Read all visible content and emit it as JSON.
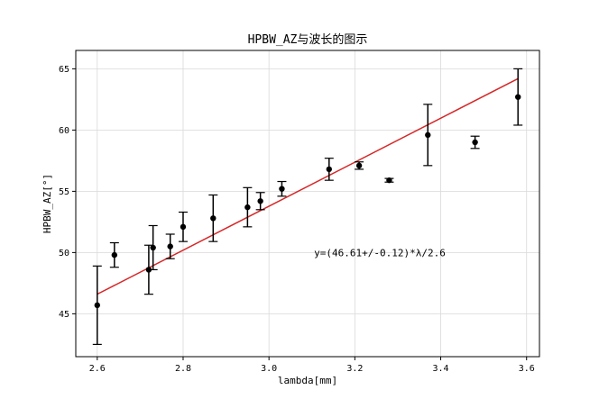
{
  "chart_data": {
    "type": "scatter",
    "title": "HPBW_AZ与波长的图示",
    "xlabel": "lambda[mm]",
    "ylabel": "HPBW_AZ[°]",
    "xlim": [
      2.55,
      3.63
    ],
    "ylim": [
      41.5,
      66.5
    ],
    "xticks": [
      2.6,
      2.8,
      3.0,
      3.2,
      3.4,
      3.6
    ],
    "xtick_labels": [
      "2.6",
      "2.8",
      "3.0",
      "3.2",
      "3.4",
      "3.6"
    ],
    "yticks": [
      45,
      50,
      55,
      60,
      65
    ],
    "ytick_labels": [
      "45",
      "50",
      "55",
      "60",
      "65"
    ],
    "grid": true,
    "series": [
      {
        "kind": "errorbar",
        "color": "#000000",
        "points": [
          {
            "x": 2.6,
            "y": 45.7,
            "err": 3.2
          },
          {
            "x": 2.64,
            "y": 49.8,
            "err": 1.0
          },
          {
            "x": 2.72,
            "y": 48.6,
            "err": 2.0
          },
          {
            "x": 2.73,
            "y": 50.4,
            "err": 1.8
          },
          {
            "x": 2.77,
            "y": 50.5,
            "err": 1.0
          },
          {
            "x": 2.8,
            "y": 52.1,
            "err": 1.2
          },
          {
            "x": 2.87,
            "y": 52.8,
            "err": 1.9
          },
          {
            "x": 2.95,
            "y": 53.7,
            "err": 1.6
          },
          {
            "x": 2.98,
            "y": 54.2,
            "err": 0.7
          },
          {
            "x": 3.03,
            "y": 55.2,
            "err": 0.6
          },
          {
            "x": 3.14,
            "y": 56.8,
            "err": 0.9
          },
          {
            "x": 3.21,
            "y": 57.1,
            "err": 0.3
          },
          {
            "x": 3.28,
            "y": 55.9,
            "err": 0.15
          },
          {
            "x": 3.37,
            "y": 59.6,
            "err": 2.5
          },
          {
            "x": 3.48,
            "y": 59.0,
            "err": 0.5
          },
          {
            "x": 3.58,
            "y": 62.7,
            "err": 2.3
          }
        ]
      },
      {
        "kind": "fit-line",
        "color": "#d62728",
        "x": [
          2.6,
          3.58
        ],
        "y": [
          46.6,
          64.2
        ]
      }
    ],
    "annotations": [
      {
        "text": "y=(46.61+/-0.12)*λ/2.6",
        "x": 3.105,
        "y": 50.0
      }
    ]
  }
}
